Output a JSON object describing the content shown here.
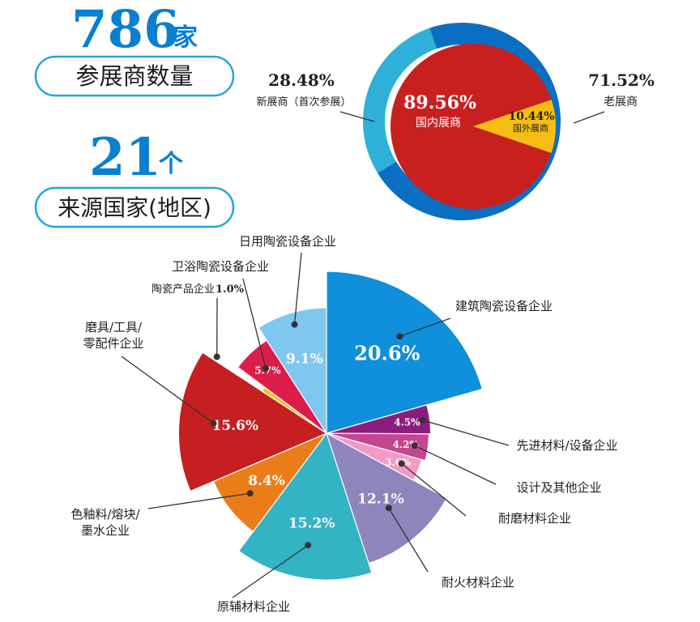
{
  "header": {
    "exhibitor_count": "786",
    "exhibitor_unit": "家",
    "exhibitor_label": "参展商数量",
    "country_count": "21",
    "country_unit": "个",
    "country_label": "来源国家(地区)"
  },
  "colors": {
    "accent_blue": "#0a7fd0",
    "dark_text": "#222222"
  },
  "chart_data": [
    {
      "type": "pie",
      "description_role": "ring",
      "slices": [
        {
          "name": "新展商",
          "sublabel": "（首次参展）",
          "value": 28.48,
          "label": "28.48%",
          "color": "#2fb0d8"
        },
        {
          "name": "老展商",
          "sublabel": "",
          "value": 71.52,
          "label": "71.52%",
          "color": "#0a6fc2"
        }
      ]
    },
    {
      "type": "pie",
      "description_role": "inner",
      "slices": [
        {
          "name": "国内展商",
          "value": 89.56,
          "label": "89.56%",
          "color": "#c8201f"
        },
        {
          "name": "国外展商",
          "value": 10.44,
          "label": "10.44%",
          "color": "#f6bd14"
        }
      ]
    },
    {
      "type": "pie",
      "description_role": "rose",
      "slices": [
        {
          "name": "建筑陶瓷设备企业",
          "value": 20.6,
          "label": "20.6%",
          "color": "#0f8fdc"
        },
        {
          "name": "先进材料/设备企业",
          "value": 4.5,
          "label": "4.5%",
          "color": "#8b1e7c"
        },
        {
          "name": "设计及其他企业",
          "value": 4.2,
          "label": "4.2%",
          "color": "#c4468f"
        },
        {
          "name": "耐磨材料企业",
          "value": 3.6,
          "label": "3.6%",
          "color": "#ef9bc3"
        },
        {
          "name": "耐火材料企业",
          "value": 12.1,
          "label": "12.1%",
          "color": "#8e85bd"
        },
        {
          "name": "原辅材料企业",
          "value": 15.2,
          "label": "15.2%",
          "color": "#33b3c3"
        },
        {
          "name": "色釉料/熔块/墨水企业",
          "value": 8.4,
          "label": "8.4%",
          "color": "#ea7d19"
        },
        {
          "name": "磨具/工具/零配件企业",
          "value": 15.6,
          "label": "15.6%",
          "color": "#c51f22"
        },
        {
          "name": "陶瓷产品企业",
          "value": 1.0,
          "label": "1.0%",
          "color": "#f6c21a"
        },
        {
          "name": "卫浴陶瓷设备企业",
          "value": 5.7,
          "label": "5.7%",
          "color": "#dc1d4a"
        },
        {
          "name": "日用陶瓷设备企业",
          "value": 9.1,
          "label": "9.1%",
          "color": "#7fc7ef"
        }
      ],
      "category_labels": {
        "建筑陶瓷设备企业": "建筑陶瓷设备企业",
        "先进材料/设备企业": "先进材料/设备企业",
        "设计及其他企业": "设计及其他企业",
        "耐磨材料企业": "耐磨材料企业",
        "耐火材料企业": "耐火材料企业",
        "原辅材料企业": "原辅材料企业",
        "色釉料/熔块/墨水企业": [
          "色釉料/熔块/",
          "墨水企业"
        ],
        "磨具/工具/零配件企业": [
          "磨具/工具/",
          "零配件企业"
        ],
        "陶瓷产品企业": "陶瓷产品企业",
        "卫浴陶瓷设备企业": "卫浴陶瓷设备企业",
        "日用陶瓷设备企业": "日用陶瓷设备企业"
      }
    }
  ]
}
